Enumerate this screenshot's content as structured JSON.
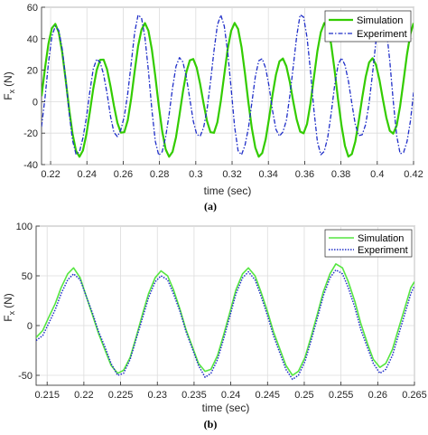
{
  "chart_data": [
    {
      "type": "line",
      "caption": "(a)",
      "xlabel": "time (sec)",
      "ylabel": "F",
      "ylabel_sub": "x",
      "ylabel_unit": "(N)",
      "xlim": [
        0.215,
        0.42
      ],
      "ylim": [
        -40,
        60
      ],
      "xticks": [
        0.22,
        0.24,
        0.26,
        0.28,
        0.3,
        0.32,
        0.34,
        0.36,
        0.38,
        0.4,
        0.42
      ],
      "xtick_labels": [
        "0.22",
        "0.24",
        "0.26",
        "0.28",
        "0.3",
        "0.32",
        "0.34",
        "0.36",
        "0.38",
        "0.4",
        "0.42"
      ],
      "yticks": [
        -40,
        -20,
        0,
        20,
        40,
        60
      ],
      "ytick_labels": [
        "-40",
        "-20",
        "0",
        "20",
        "40",
        "60"
      ],
      "grid": true,
      "legend_position": "top-right",
      "series": [
        {
          "name": "Simulation",
          "color": "#33cc00",
          "style": "solid",
          "x": [
            0.215,
            0.2169,
            0.2188,
            0.2207,
            0.2226,
            0.2245,
            0.2264,
            0.2283,
            0.2302,
            0.2321,
            0.234,
            0.2359,
            0.2378,
            0.2397,
            0.2416,
            0.2435,
            0.2454,
            0.2473,
            0.2492,
            0.2511,
            0.253,
            0.2549,
            0.2568,
            0.2587,
            0.2606,
            0.2625,
            0.2644,
            0.2663,
            0.2682,
            0.2701,
            0.272,
            0.2739,
            0.2758,
            0.2777,
            0.2796,
            0.2815,
            0.2834,
            0.2853,
            0.2872,
            0.2891,
            0.291,
            0.2929,
            0.2948,
            0.2967,
            0.2986,
            0.3005,
            0.3024,
            0.3043,
            0.3062,
            0.3081,
            0.31,
            0.3119,
            0.3138,
            0.3157,
            0.3176,
            0.3195,
            0.3214,
            0.3233,
            0.3252,
            0.3271,
            0.329,
            0.3309,
            0.3328,
            0.3347,
            0.3366,
            0.3385,
            0.3404,
            0.3423,
            0.3442,
            0.3461,
            0.348,
            0.3499,
            0.3518,
            0.3537,
            0.3556,
            0.3575,
            0.3594,
            0.3613,
            0.3632,
            0.3651,
            0.367,
            0.3689,
            0.3708,
            0.3727,
            0.3746,
            0.3765,
            0.3784,
            0.3803,
            0.3822,
            0.3841,
            0.386,
            0.3879,
            0.3898,
            0.3917,
            0.3936,
            0.3955,
            0.3974,
            0.3993,
            0.4012,
            0.4031,
            0.405,
            0.4069,
            0.4088,
            0.4107,
            0.4126,
            0.4145,
            0.4164,
            0.4183,
            0.42
          ],
          "y": [
            3.5,
            21.3,
            36.7,
            46.7,
            49.4,
            43.9,
            31.3,
            13.9,
            -4.6,
            -20.5,
            -31.3,
            -35.0,
            -31.1,
            -20.9,
            -6.7,
            8.2,
            20.1,
            26.6,
            26.7,
            20.6,
            9.8,
            -2.6,
            -13.4,
            -19.7,
            -19.4,
            -11.9,
            2.0,
            19.1,
            35.2,
            45.8,
            49.9,
            45.1,
            33.1,
            16.1,
            -2.6,
            -18.8,
            -30.3,
            -35.0,
            -31.9,
            -22.6,
            -8.6,
            6.2,
            18.7,
            26.2,
            27.1,
            21.6,
            11.2,
            -1.2,
            -12.4,
            -19.4,
            -19.8,
            -13.1,
            0.5,
            17.2,
            33.6,
            45.0,
            50.0,
            46.2,
            34.7,
            18.0,
            -0.6,
            -17.0,
            -29.2,
            -35.0,
            -32.7,
            -24.0,
            -10.5,
            4.4,
            17.2,
            25.6,
            27.4,
            22.5,
            12.6,
            0.1,
            -11.3,
            -19.0,
            -20.1,
            -14.2,
            -1.1,
            15.4,
            32.0,
            44.1,
            49.9,
            47.0,
            36.4,
            19.9,
            1.4,
            -15.2,
            -28.1,
            -34.9,
            -33.3,
            -25.4,
            -12.2,
            2.4,
            15.6,
            24.9,
            27.6,
            23.4,
            13.9,
            1.5,
            -10.1,
            -18.5,
            -20.3,
            -15.2,
            -2.8,
            13.4,
            30.1,
            43.2,
            49.9
          ]
        },
        {
          "name": "Experiment",
          "color": "#1f2ec8",
          "style": "dashdot",
          "x": [
            0.215,
            0.2169,
            0.2188,
            0.2207,
            0.2226,
            0.2245,
            0.2264,
            0.2283,
            0.2302,
            0.2321,
            0.234,
            0.2359,
            0.2378,
            0.2397,
            0.2416,
            0.2435,
            0.2454,
            0.2473,
            0.2492,
            0.2511,
            0.253,
            0.2549,
            0.2568,
            0.2587,
            0.2606,
            0.2625,
            0.2644,
            0.2663,
            0.2682,
            0.2701,
            0.272,
            0.2739,
            0.2758,
            0.2777,
            0.2796,
            0.2815,
            0.2834,
            0.2853,
            0.2872,
            0.2891,
            0.291,
            0.2929,
            0.2948,
            0.2967,
            0.2986,
            0.3005,
            0.3024,
            0.3043,
            0.3062,
            0.3081,
            0.31,
            0.3119,
            0.3138,
            0.3157,
            0.3176,
            0.3195,
            0.3214,
            0.3233,
            0.3252,
            0.3271,
            0.329,
            0.3309,
            0.3328,
            0.3347,
            0.3366,
            0.3385,
            0.3404,
            0.3423,
            0.3442,
            0.3461,
            0.348,
            0.3499,
            0.3518,
            0.3537,
            0.3556,
            0.3575,
            0.3594,
            0.3613,
            0.3632,
            0.3651,
            0.367,
            0.3689,
            0.3708,
            0.3727,
            0.3746,
            0.3765,
            0.3784,
            0.3803,
            0.3822,
            0.3841,
            0.386,
            0.3879,
            0.3898,
            0.3917,
            0.3936,
            0.3955,
            0.3974,
            0.3993,
            0.4012,
            0.4031,
            0.405,
            0.4069,
            0.4088,
            0.4107,
            0.4126,
            0.4145,
            0.4164,
            0.4183,
            0.42
          ],
          "y": [
            -15.9,
            2.3,
            24.4,
            41.6,
            48.0,
            45.3,
            33.5,
            14.6,
            -7.1,
            -24.7,
            -33.4,
            -31.9,
            -23.1,
            -10.3,
            6.3,
            20.8,
            27.0,
            25.0,
            17.3,
            5.3,
            -9.2,
            -19.6,
            -22.2,
            -17.9,
            -9.4,
            5.1,
            24.2,
            43.8,
            55.1,
            53.2,
            40.6,
            19.6,
            -5.1,
            -25.2,
            -34.1,
            -31.8,
            -22.4,
            -8.1,
            8.8,
            22.4,
            28.0,
            25.2,
            15.6,
            1.8,
            -12.3,
            -20.8,
            -22.0,
            -16.5,
            -5.1,
            12.5,
            32.1,
            48.7,
            55.0,
            48.0,
            31.4,
            8.1,
            -16.0,
            -31.2,
            -33.8,
            -27.8,
            -16.9,
            -0.7,
            15.8,
            26.0,
            27.3,
            21.3,
            9.6,
            -5.7,
            -17.7,
            -21.9,
            -19.3,
            -12.0,
            3.5,
            22.1,
            41.6,
            55.2,
            53.8,
            40.8,
            19.7,
            -5.3,
            -25.4,
            -33.7,
            -31.6,
            -22.7,
            -7.6,
            10.2,
            23.4,
            27.8,
            23.3,
            13.1,
            -1.1,
            -14.5,
            -21.6,
            -21.0,
            -14.5,
            -0.9,
            17.9,
            38.7,
            54.4,
            57.0,
            46.4,
            25.9,
            0.5,
            -21.6,
            -33.1,
            -32.3,
            -25.4,
            -12.2,
            5.8
          ]
        }
      ]
    },
    {
      "type": "line",
      "caption": "(b)",
      "xlabel": "time (sec)",
      "ylabel": "F",
      "ylabel_sub": "x",
      "ylabel_unit": "(N)",
      "xlim": [
        0.2135,
        0.265
      ],
      "ylim": [
        -60,
        100
      ],
      "xticks": [
        0.215,
        0.22,
        0.225,
        0.23,
        0.235,
        0.24,
        0.245,
        0.25,
        0.255,
        0.26,
        0.265
      ],
      "xtick_labels": [
        "0.215",
        "0.22",
        "0.225",
        "0.23",
        "0.235",
        "0.24",
        "0.245",
        "0.25",
        "0.255",
        "0.26",
        "0.265"
      ],
      "yticks": [
        -50,
        0,
        50,
        100
      ],
      "ytick_labels": [
        "-50",
        "0",
        "50",
        "100"
      ],
      "grid": true,
      "legend_position": "top-right",
      "series": [
        {
          "name": "Simulation",
          "color": "#55e640",
          "style": "solid",
          "note": "",
          "x": [
            0.2135,
            0.2144,
            0.2152,
            0.2161,
            0.2169,
            0.2178,
            0.2186,
            0.2195,
            0.2203,
            0.2212,
            0.222,
            0.2229,
            0.2237,
            0.2246,
            0.2254,
            0.2263,
            0.2271,
            0.228,
            0.2288,
            0.2297,
            0.2305,
            0.2314,
            0.2322,
            0.2331,
            0.2339,
            0.2348,
            0.2356,
            0.2365,
            0.2373,
            0.2382,
            0.239,
            0.2399,
            0.2407,
            0.2416,
            0.2424,
            0.2433,
            0.2441,
            0.245,
            0.2458,
            0.2467,
            0.2475,
            0.2484,
            0.2492,
            0.2501,
            0.2509,
            0.2518,
            0.2526,
            0.2535,
            0.2543,
            0.2552,
            0.256,
            0.2569,
            0.2577,
            0.2586,
            0.2594,
            0.2603,
            0.2611,
            0.262,
            0.2628,
            0.2637,
            0.2645,
            0.265
          ],
          "y": [
            -12,
            -5,
            8,
            22,
            38,
            52,
            58,
            48,
            30,
            10,
            -8,
            -25,
            -40,
            -48,
            -45,
            -32,
            -12,
            12,
            32,
            48,
            55,
            50,
            36,
            16,
            -4,
            -22,
            -38,
            -46,
            -44,
            -30,
            -10,
            14,
            36,
            52,
            58,
            50,
            34,
            14,
            -6,
            -24,
            -40,
            -50,
            -46,
            -32,
            -12,
            12,
            34,
            52,
            62,
            58,
            44,
            24,
            2,
            -18,
            -34,
            -42,
            -38,
            -24,
            -4,
            18,
            38,
            44
          ]
        },
        {
          "name": "Experiment",
          "color": "#1f2ec8",
          "style": "dotted",
          "x": [
            0.2135,
            0.2144,
            0.2152,
            0.2161,
            0.2169,
            0.2178,
            0.2186,
            0.2195,
            0.2203,
            0.2212,
            0.222,
            0.2229,
            0.2237,
            0.2246,
            0.2254,
            0.2263,
            0.2271,
            0.228,
            0.2288,
            0.2297,
            0.2305,
            0.2314,
            0.2322,
            0.2331,
            0.2339,
            0.2348,
            0.2356,
            0.2365,
            0.2373,
            0.2382,
            0.239,
            0.2399,
            0.2407,
            0.2416,
            0.2424,
            0.2433,
            0.2441,
            0.245,
            0.2458,
            0.2467,
            0.2475,
            0.2484,
            0.2492,
            0.2501,
            0.2509,
            0.2518,
            0.2526,
            0.2535,
            0.2543,
            0.2552,
            0.256,
            0.2569,
            0.2577,
            0.2586,
            0.2594,
            0.2603,
            0.2611,
            0.262,
            0.2628,
            0.2637,
            0.2645,
            0.265
          ],
          "y": [
            -15,
            -10,
            2,
            16,
            32,
            46,
            52,
            46,
            30,
            12,
            -6,
            -22,
            -38,
            -50,
            -48,
            -34,
            -14,
            8,
            28,
            44,
            50,
            46,
            32,
            14,
            -6,
            -24,
            -40,
            -52,
            -48,
            -34,
            -14,
            10,
            32,
            48,
            54,
            46,
            30,
            10,
            -10,
            -28,
            -44,
            -54,
            -50,
            -36,
            -16,
            8,
            30,
            48,
            56,
            52,
            38,
            18,
            -4,
            -22,
            -38,
            -48,
            -44,
            -30,
            -10,
            12,
            32,
            40
          ]
        }
      ]
    }
  ]
}
